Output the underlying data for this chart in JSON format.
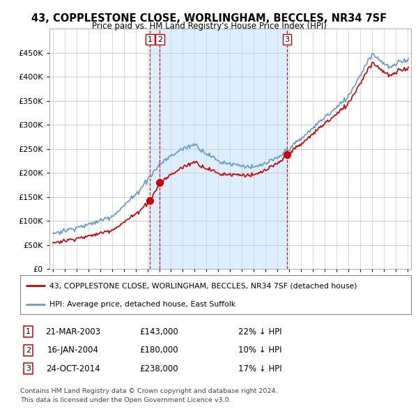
{
  "title": "43, COPPLESTONE CLOSE, WORLINGHAM, BECCLES, NR34 7SF",
  "subtitle": "Price paid vs. HM Land Registry's House Price Index (HPI)",
  "legend_line1": "43, COPPLESTONE CLOSE, WORLINGHAM, BECCLES, NR34 7SF (detached house)",
  "legend_line2": "HPI: Average price, detached house, East Suffolk",
  "footer1": "Contains HM Land Registry data © Crown copyright and database right 2024.",
  "footer2": "This data is licensed under the Open Government Licence v3.0.",
  "transactions": [
    {
      "label": "1",
      "date": "21-MAR-2003",
      "price": 143000,
      "pct": "22% ↓ HPI",
      "year": 2003.22
    },
    {
      "label": "2",
      "date": "16-JAN-2004",
      "price": 180000,
      "pct": "10% ↓ HPI",
      "year": 2004.04
    },
    {
      "label": "3",
      "date": "24-OCT-2014",
      "price": 238000,
      "pct": "17% ↓ HPI",
      "year": 2014.81
    }
  ],
  "vline_color": "#cc0000",
  "hpi_color": "#6699cc",
  "price_color": "#cc0000",
  "marker_color": "#cc0000",
  "shade_color": "#ddeeff",
  "ylim": [
    0,
    500000
  ],
  "yticks": [
    0,
    50000,
    100000,
    150000,
    200000,
    250000,
    300000,
    350000,
    400000,
    450000
  ],
  "xlim_start": 1994.7,
  "xlim_end": 2025.3,
  "background_color": "#ffffff",
  "plot_bg": "#ffffff",
  "grid_color": "#cccccc"
}
